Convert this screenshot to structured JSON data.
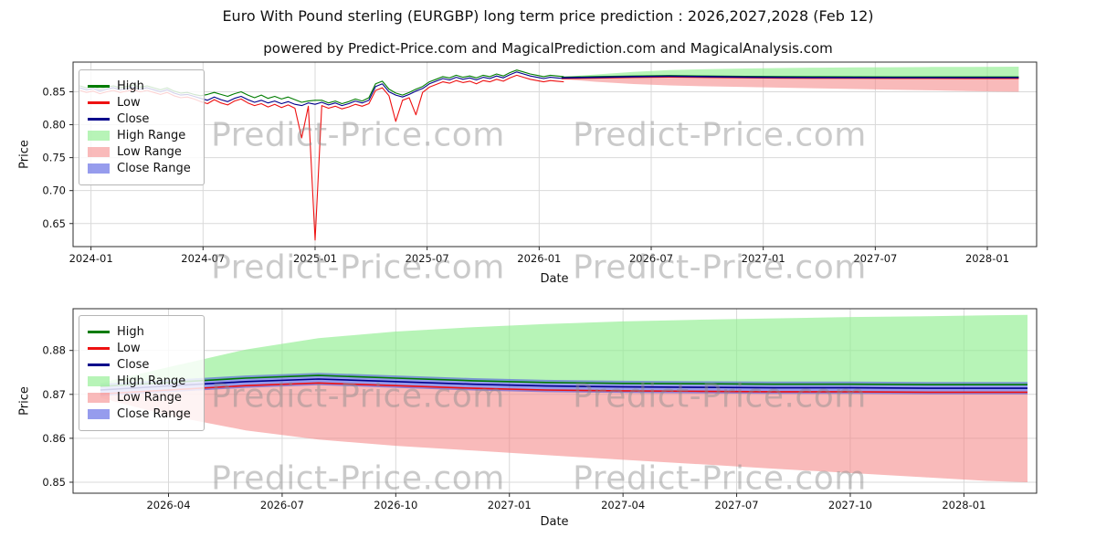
{
  "title": "Euro With Pound sterling (EURGBP) long term price prediction : 2026,2027,2028 (Feb 12)",
  "subtitle": "powered by Predict-Price.com and MagicalPrediction.com and MagicalAnalysis.com",
  "watermark": {
    "text": "Predict-Price.com"
  },
  "colors": {
    "high": "#007c00",
    "low": "#ee1111",
    "close": "#00008b",
    "high_range": "rgba(144,238,144,0.65)",
    "low_range": "rgba(244,130,130,0.55)",
    "close_range": "rgba(80,90,225,0.6)",
    "grid": "#d9d9d9",
    "spine": "#2b2b2b"
  },
  "legend": {
    "items": [
      {
        "label": "High",
        "type": "line",
        "color_key": "high"
      },
      {
        "label": "Low",
        "type": "line",
        "color_key": "low"
      },
      {
        "label": "Close",
        "type": "line",
        "color_key": "close"
      },
      {
        "label": "High Range",
        "type": "patch",
        "color_key": "high_range"
      },
      {
        "label": "Low Range",
        "type": "patch",
        "color_key": "low_range"
      },
      {
        "label": "Close Range",
        "type": "patch",
        "color_key": "close_range"
      }
    ]
  },
  "chart_data": [
    {
      "type": "line",
      "name": "history-and-forecast",
      "xlabel": "Date",
      "ylabel": "Price",
      "xlim": [
        2023.92,
        2028.22
      ],
      "ylim": [
        0.615,
        0.895
      ],
      "xticks": {
        "values": [
          2024.0,
          2024.5,
          2025.0,
          2025.5,
          2026.0,
          2026.5,
          2027.0,
          2027.5,
          2028.0
        ],
        "labels": [
          "2024-01",
          "2024-07",
          "2025-01",
          "2025-07",
          "2026-01",
          "2026-07",
          "2027-01",
          "2027-07",
          "2028-01"
        ]
      },
      "yticks": {
        "values": [
          0.65,
          0.7,
          0.75,
          0.8,
          0.85
        ],
        "labels": [
          "0.65",
          "0.70",
          "0.75",
          "0.80",
          "0.85"
        ]
      },
      "history": {
        "x_start": 2023.95,
        "x_step": 0.03,
        "high": [
          0.859,
          0.856,
          0.858,
          0.854,
          0.857,
          0.859,
          0.856,
          0.858,
          0.86,
          0.857,
          0.859,
          0.856,
          0.853,
          0.856,
          0.851,
          0.848,
          0.849,
          0.846,
          0.844,
          0.846,
          0.849,
          0.846,
          0.843,
          0.847,
          0.85,
          0.845,
          0.841,
          0.845,
          0.84,
          0.843,
          0.839,
          0.842,
          0.838,
          0.834,
          0.836,
          0.837,
          0.837,
          0.833,
          0.836,
          0.832,
          0.835,
          0.839,
          0.836,
          0.841,
          0.862,
          0.866,
          0.854,
          0.848,
          0.845,
          0.849,
          0.854,
          0.858,
          0.865,
          0.869,
          0.873,
          0.871,
          0.875,
          0.872,
          0.874,
          0.871,
          0.875,
          0.873,
          0.877,
          0.874,
          0.879,
          0.883,
          0.88,
          0.877,
          0.875,
          0.873,
          0.875,
          0.874,
          0.873
        ],
        "low": [
          0.852,
          0.849,
          0.851,
          0.847,
          0.85,
          0.852,
          0.849,
          0.851,
          0.853,
          0.85,
          0.852,
          0.849,
          0.846,
          0.849,
          0.844,
          0.841,
          0.842,
          0.839,
          0.835,
          0.832,
          0.838,
          0.833,
          0.83,
          0.836,
          0.839,
          0.833,
          0.829,
          0.832,
          0.827,
          0.831,
          0.826,
          0.83,
          0.825,
          0.78,
          0.828,
          0.625,
          0.829,
          0.825,
          0.828,
          0.824,
          0.827,
          0.831,
          0.828,
          0.832,
          0.852,
          0.856,
          0.844,
          0.805,
          0.837,
          0.841,
          0.815,
          0.849,
          0.857,
          0.861,
          0.865,
          0.863,
          0.867,
          0.864,
          0.866,
          0.862,
          0.867,
          0.865,
          0.869,
          0.866,
          0.871,
          0.875,
          0.872,
          0.869,
          0.867,
          0.865,
          0.867,
          0.866,
          0.865
        ],
        "close": [
          0.856,
          0.853,
          0.855,
          0.851,
          0.854,
          0.856,
          0.853,
          0.855,
          0.857,
          0.854,
          0.856,
          0.853,
          0.85,
          0.853,
          0.848,
          0.845,
          0.846,
          0.843,
          0.84,
          0.837,
          0.842,
          0.838,
          0.835,
          0.84,
          0.843,
          0.838,
          0.834,
          0.837,
          0.833,
          0.836,
          0.832,
          0.835,
          0.831,
          0.829,
          0.833,
          0.831,
          0.834,
          0.83,
          0.833,
          0.829,
          0.832,
          0.836,
          0.833,
          0.837,
          0.858,
          0.862,
          0.85,
          0.845,
          0.842,
          0.846,
          0.851,
          0.855,
          0.862,
          0.866,
          0.87,
          0.868,
          0.872,
          0.869,
          0.871,
          0.868,
          0.872,
          0.87,
          0.874,
          0.871,
          0.876,
          0.88,
          0.877,
          0.874,
          0.872,
          0.87,
          0.872,
          0.871,
          0.87
        ]
      },
      "prediction": {
        "x": [
          2026.1,
          2026.25,
          2026.42,
          2026.58,
          2026.75,
          2026.92,
          2027.08,
          2027.25,
          2027.42,
          2027.58,
          2027.75,
          2027.92,
          2028.05,
          2028.14
        ],
        "close": [
          0.871,
          0.8719,
          0.8729,
          0.8735,
          0.8729,
          0.8723,
          0.8719,
          0.8717,
          0.8716,
          0.8715,
          0.8715,
          0.8714,
          0.8714,
          0.8714
        ],
        "high": [
          0.8718,
          0.8727,
          0.8737,
          0.8743,
          0.8737,
          0.8731,
          0.8727,
          0.8725,
          0.8724,
          0.8723,
          0.8723,
          0.8722,
          0.8722,
          0.8722
        ],
        "low": [
          0.8701,
          0.871,
          0.872,
          0.8726,
          0.872,
          0.8714,
          0.871,
          0.8708,
          0.8707,
          0.8706,
          0.8706,
          0.8705,
          0.8705,
          0.8705
        ],
        "high_range_top": [
          0.8726,
          0.8762,
          0.8802,
          0.8828,
          0.8843,
          0.8853,
          0.886,
          0.8866,
          0.887,
          0.8873,
          0.8876,
          0.8878,
          0.888,
          0.8881
        ],
        "low_range_bottom": [
          0.8692,
          0.8652,
          0.8618,
          0.8597,
          0.8583,
          0.8572,
          0.8562,
          0.8551,
          0.8541,
          0.8531,
          0.8521,
          0.8511,
          0.8503,
          0.85
        ],
        "close_range_top": [
          0.8724,
          0.8733,
          0.8743,
          0.8749,
          0.8743,
          0.8737,
          0.8733,
          0.8731,
          0.873,
          0.8729,
          0.8729,
          0.8728,
          0.8728,
          0.8728
        ],
        "close_range_bottom": [
          0.8696,
          0.8705,
          0.8715,
          0.8721,
          0.8715,
          0.8709,
          0.8705,
          0.8703,
          0.8702,
          0.8701,
          0.8701,
          0.87,
          0.87,
          0.87
        ]
      }
    },
    {
      "type": "line",
      "name": "forecast-detail",
      "xlabel": "Date",
      "ylabel": "Price",
      "xlim": [
        2026.04,
        2028.16
      ],
      "ylim": [
        0.8475,
        0.8895
      ],
      "xticks": {
        "values": [
          2026.25,
          2026.5,
          2026.75,
          2027.0,
          2027.25,
          2027.5,
          2027.75,
          2028.0
        ],
        "labels": [
          "2026-04",
          "2026-07",
          "2026-10",
          "2027-01",
          "2027-04",
          "2027-07",
          "2027-10",
          "2028-01"
        ]
      },
      "yticks": {
        "values": [
          0.85,
          0.86,
          0.87,
          0.88
        ],
        "labels": [
          "0.85",
          "0.86",
          "0.87",
          "0.88"
        ]
      },
      "prediction_ref": 0
    }
  ]
}
